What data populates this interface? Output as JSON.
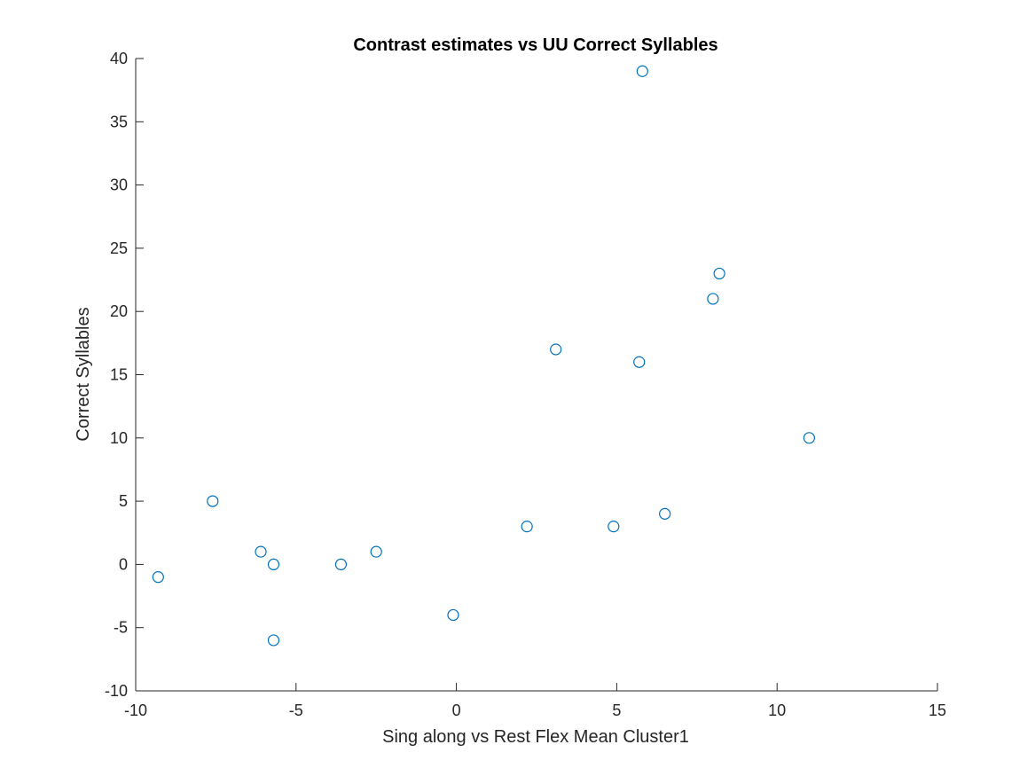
{
  "chart_data": {
    "type": "scatter",
    "title": "Contrast estimates vs UU Correct Syllables",
    "xlabel": "Sing along vs Rest Flex Mean Cluster1",
    "ylabel": "Correct Syllables",
    "xlim": [
      -10,
      15
    ],
    "ylim": [
      -10,
      40
    ],
    "xticks": [
      "-10",
      "-5",
      "0",
      "5",
      "10",
      "15"
    ],
    "yticks": [
      "-10",
      "-5",
      "0",
      "5",
      "10",
      "15",
      "20",
      "25",
      "30",
      "35",
      "40"
    ],
    "grid": false,
    "marker": "open-circle",
    "marker_color": "#0072BD",
    "axis_color": "#262626",
    "points": [
      {
        "x": -9.3,
        "y": -1
      },
      {
        "x": -7.6,
        "y": 5
      },
      {
        "x": -6.1,
        "y": 1
      },
      {
        "x": -5.7,
        "y": 0
      },
      {
        "x": -5.7,
        "y": -6
      },
      {
        "x": -3.6,
        "y": 0
      },
      {
        "x": -2.5,
        "y": 1
      },
      {
        "x": -0.1,
        "y": -4
      },
      {
        "x": 2.2,
        "y": 3
      },
      {
        "x": 3.1,
        "y": 17
      },
      {
        "x": 4.9,
        "y": 3
      },
      {
        "x": 5.7,
        "y": 16
      },
      {
        "x": 5.8,
        "y": 39
      },
      {
        "x": 6.5,
        "y": 4
      },
      {
        "x": 8.0,
        "y": 21
      },
      {
        "x": 8.2,
        "y": 23
      },
      {
        "x": 11.0,
        "y": 10
      }
    ]
  }
}
